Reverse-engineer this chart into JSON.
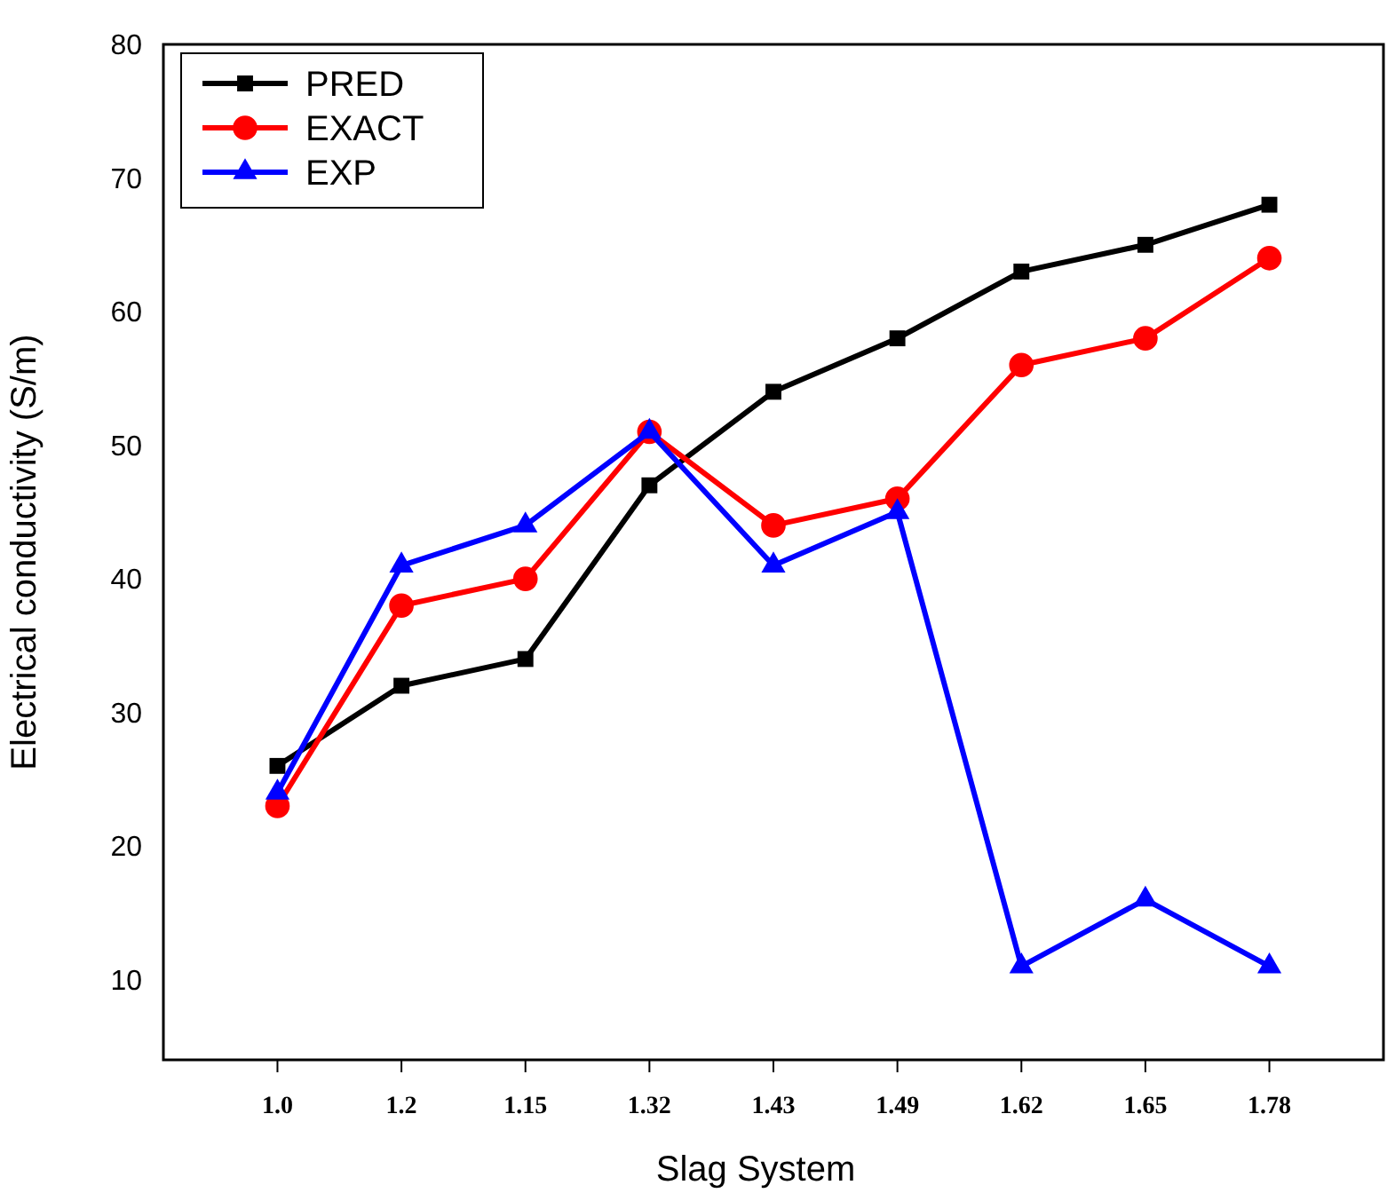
{
  "chart_data": {
    "type": "line",
    "xlabel": "Slag System",
    "ylabel": "Electrical conductivity (S/m)",
    "categories": [
      "1.0",
      "1.2",
      "1.15",
      "1.32",
      "1.43",
      "1.49",
      "1.62",
      "1.65",
      "1.78"
    ],
    "series": [
      {
        "name": "PRED",
        "color": "#000000",
        "marker": "square",
        "values": [
          26,
          32,
          34,
          47,
          54,
          58,
          63,
          65,
          68
        ]
      },
      {
        "name": "EXACT",
        "color": "#ff0000",
        "marker": "circle",
        "values": [
          23,
          38,
          40,
          51,
          44,
          46,
          56,
          58,
          64
        ]
      },
      {
        "name": "EXP",
        "color": "#0000ff",
        "marker": "triangle",
        "values": [
          24,
          41,
          44,
          51,
          41,
          45,
          11,
          16,
          11
        ]
      }
    ],
    "ylim": [
      4,
      80
    ],
    "yticks": [
      10,
      20,
      30,
      40,
      50,
      60,
      70,
      80
    ],
    "grid": false,
    "legend": "top left",
    "line_style": "solid"
  }
}
